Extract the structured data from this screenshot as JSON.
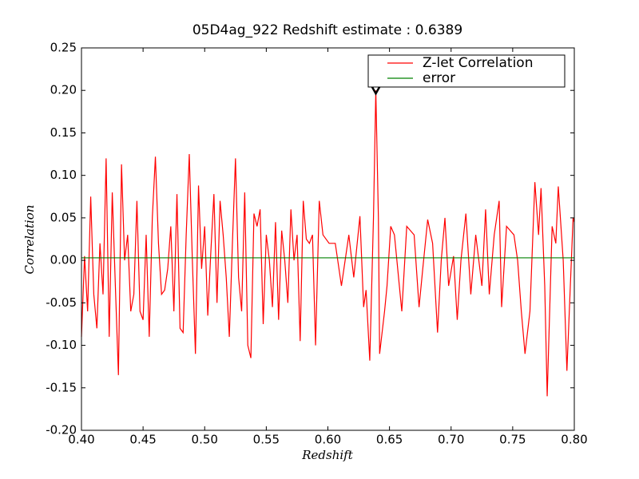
{
  "chart_data": {
    "type": "line",
    "title": "05D4ag_922 Redshift estimate : 0.6389",
    "x_label": "Redshift",
    "y_label": "Correlation",
    "xlim": [
      0.4,
      0.8
    ],
    "ylim": [
      -0.2,
      0.25
    ],
    "xticks": [
      {
        "value": 0.4,
        "label": "0.40"
      },
      {
        "value": 0.45,
        "label": "0.45"
      },
      {
        "value": 0.5,
        "label": "0.50"
      },
      {
        "value": 0.55,
        "label": "0.55"
      },
      {
        "value": 0.6,
        "label": "0.60"
      },
      {
        "value": 0.65,
        "label": "0.65"
      },
      {
        "value": 0.7,
        "label": "0.70"
      },
      {
        "value": 0.75,
        "label": "0.75"
      },
      {
        "value": 0.8,
        "label": "0.80"
      }
    ],
    "yticks": [
      {
        "value": -0.2,
        "label": "-0.20"
      },
      {
        "value": -0.15,
        "label": "-0.15"
      },
      {
        "value": -0.1,
        "label": "-0.10"
      },
      {
        "value": -0.05,
        "label": "-0.05"
      },
      {
        "value": 0,
        "label": "0.00"
      },
      {
        "value": 0.05,
        "label": "0.05"
      },
      {
        "value": 0.1,
        "label": "0.10"
      },
      {
        "value": 0.15,
        "label": "0.15"
      },
      {
        "value": 0.2,
        "label": "0.20"
      },
      {
        "value": 0.25,
        "label": "0.25"
      }
    ],
    "legend": "upper right",
    "series": [
      {
        "name": "Z-let Correlation",
        "color": "#ff0000",
        "x": [
          0.4,
          0.4025,
          0.405,
          0.4075,
          0.41,
          0.4125,
          0.415,
          0.4175,
          0.42,
          0.4225,
          0.425,
          0.4275,
          0.43,
          0.4325,
          0.435,
          0.4375,
          0.44,
          0.4425,
          0.445,
          0.4475,
          0.45,
          0.4525,
          0.455,
          0.4575,
          0.46,
          0.4625,
          0.465,
          0.4675,
          0.47,
          0.4725,
          0.475,
          0.4775,
          0.48,
          0.4825,
          0.485,
          0.4875,
          0.49,
          0.4925,
          0.495,
          0.4975,
          0.5,
          0.5025,
          0.505,
          0.5075,
          0.51,
          0.5125,
          0.515,
          0.5175,
          0.52,
          0.5225,
          0.525,
          0.5275,
          0.53,
          0.5325,
          0.535,
          0.5375,
          0.54,
          0.5425,
          0.545,
          0.5475,
          0.55,
          0.5525,
          0.555,
          0.5575,
          0.56,
          0.5625,
          0.565,
          0.5675,
          0.57,
          0.5725,
          0.575,
          0.5775,
          0.58,
          0.5825,
          0.585,
          0.5875,
          0.59,
          0.593,
          0.596,
          0.601,
          0.606,
          0.611,
          0.614,
          0.617,
          0.621,
          0.626,
          0.629,
          0.631,
          0.634,
          0.637,
          0.6389,
          0.641,
          0.642,
          0.646,
          0.648,
          0.651,
          0.654,
          0.656,
          0.66,
          0.664,
          0.667,
          0.67,
          0.674,
          0.677,
          0.681,
          0.685,
          0.689,
          0.692,
          0.695,
          0.698,
          0.702,
          0.705,
          0.708,
          0.712,
          0.716,
          0.72,
          0.725,
          0.728,
          0.731,
          0.735,
          0.739,
          0.741,
          0.745,
          0.751,
          0.754,
          0.757,
          0.76,
          0.764,
          0.768,
          0.771,
          0.773,
          0.776,
          0.778,
          0.782,
          0.785,
          0.787,
          0.791,
          0.794,
          0.799,
          0.8
        ],
        "values": [
          -0.09,
          0.005,
          -0.06,
          0.075,
          -0.04,
          -0.08,
          0.02,
          -0.04,
          0.12,
          -0.09,
          0.08,
          -0.03,
          -0.135,
          0.113,
          0.0,
          0.03,
          -0.06,
          -0.04,
          0.07,
          -0.06,
          -0.07,
          0.03,
          -0.09,
          0.05,
          0.122,
          0.02,
          -0.04,
          -0.035,
          -0.01,
          0.04,
          -0.06,
          0.078,
          -0.08,
          -0.085,
          0.03,
          0.125,
          0.0,
          -0.11,
          0.088,
          -0.01,
          0.04,
          -0.065,
          0.01,
          0.078,
          -0.05,
          0.07,
          0.03,
          -0.02,
          -0.09,
          0.02,
          0.12,
          -0.02,
          -0.06,
          0.08,
          -0.1,
          -0.115,
          0.055,
          0.04,
          0.06,
          -0.075,
          0.03,
          0.0,
          -0.055,
          0.045,
          -0.07,
          0.035,
          0.0,
          -0.05,
          0.06,
          0.0,
          0.03,
          -0.095,
          0.07,
          0.025,
          0.02,
          0.03,
          -0.1,
          0.07,
          0.03,
          0.02,
          0.02,
          -0.03,
          0.0,
          0.03,
          -0.02,
          0.052,
          -0.055,
          -0.035,
          -0.118,
          0.05,
          0.2,
          0.05,
          -0.11,
          -0.06,
          -0.03,
          0.04,
          0.03,
          0.0,
          -0.06,
          0.04,
          0.035,
          0.03,
          -0.055,
          -0.01,
          0.048,
          0.02,
          -0.085,
          0.0,
          0.05,
          -0.03,
          0.005,
          -0.07,
          0.0,
          0.055,
          -0.04,
          0.03,
          -0.03,
          0.06,
          -0.04,
          0.03,
          0.07,
          -0.055,
          0.04,
          0.03,
          0.0,
          -0.06,
          -0.11,
          -0.06,
          0.092,
          0.03,
          0.085,
          -0.03,
          -0.16,
          0.04,
          0.02,
          0.087,
          0.0,
          -0.13,
          0.05,
          0.045
        ]
      },
      {
        "name": "error",
        "color": "#008000",
        "x": [
          0.4,
          0.8
        ],
        "values": [
          0.003,
          0.003
        ]
      }
    ],
    "marker": {
      "x": 0.6389,
      "y": 0.2
    }
  }
}
